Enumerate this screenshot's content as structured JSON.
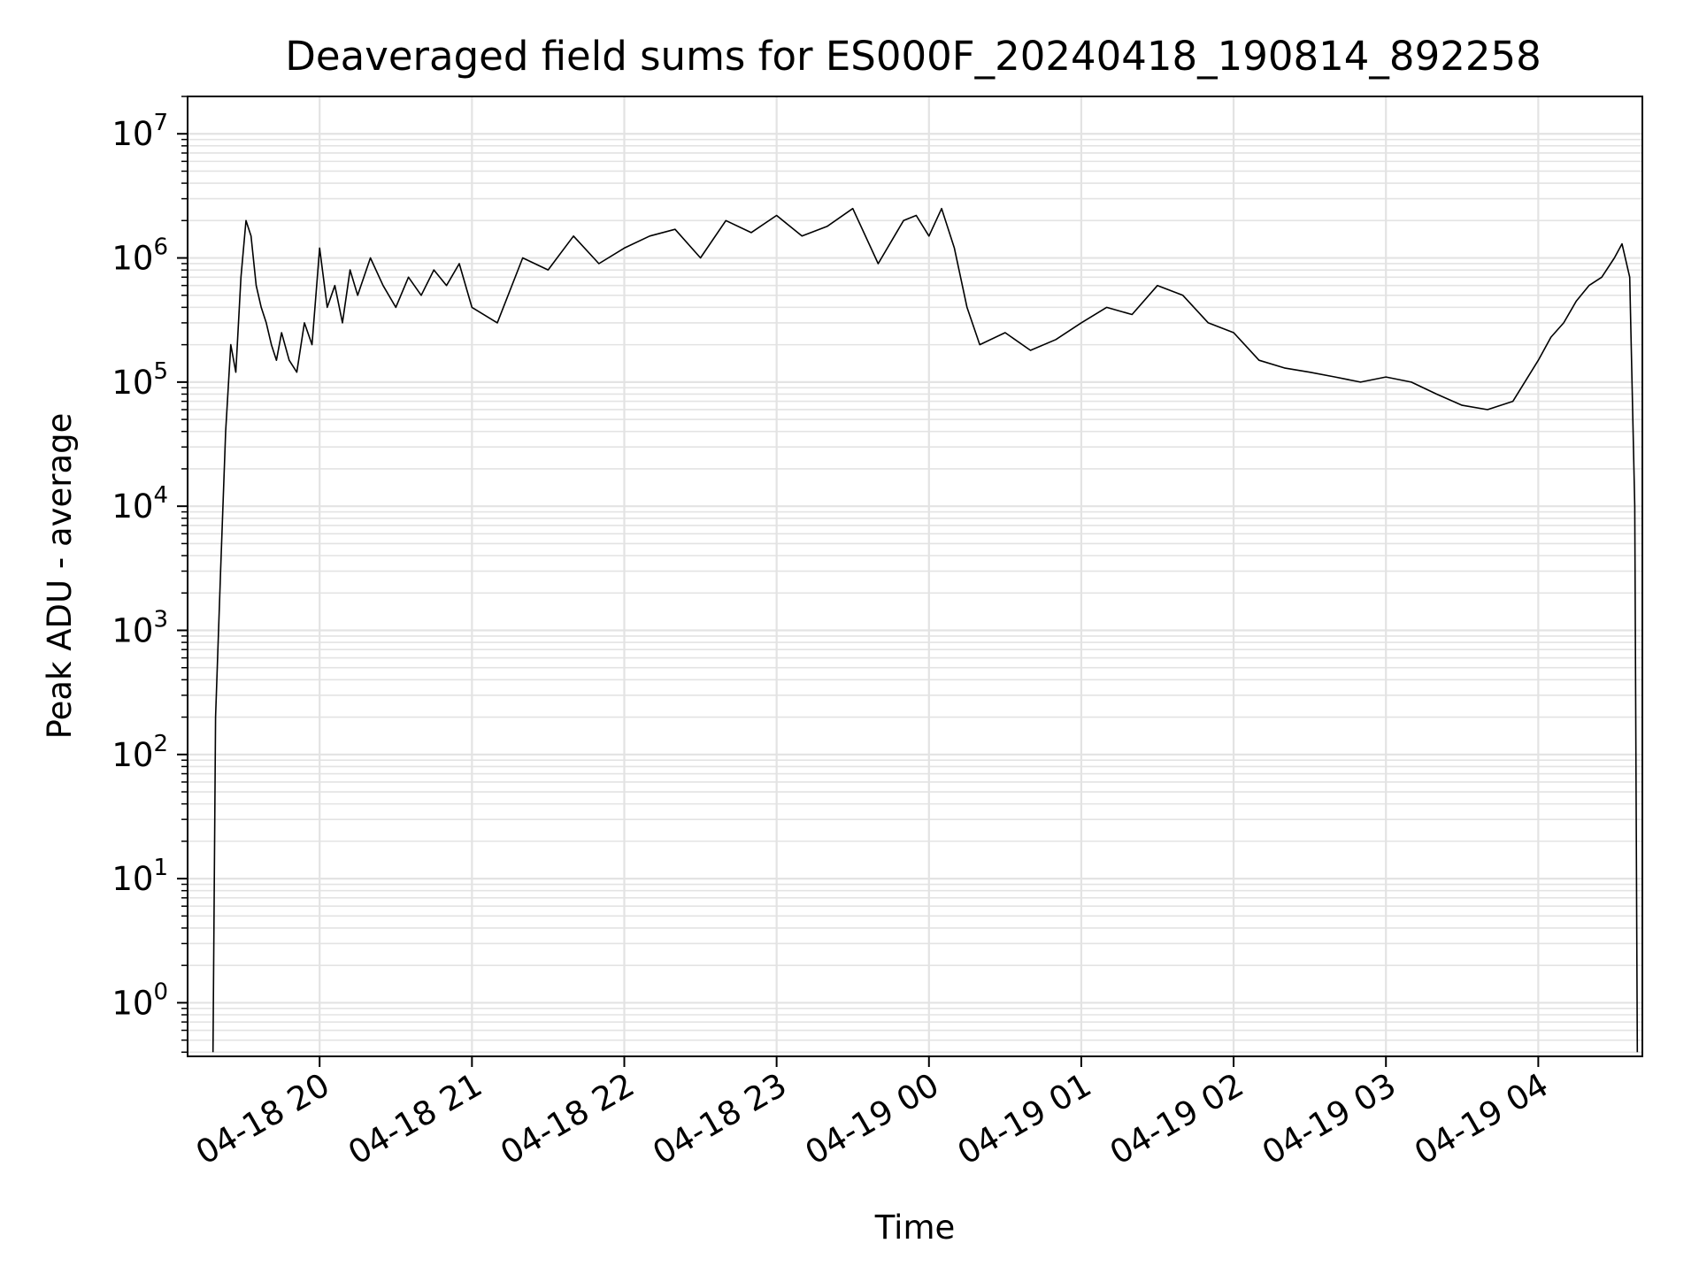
{
  "chart_data": {
    "type": "line",
    "title": "Deaveraged field sums for ES000F_20240418_190814_892258",
    "xlabel": "Time",
    "ylabel": "Peak ADU - average",
    "y_scale": "log",
    "ylim": [
      0.37,
      20000000
    ],
    "xlim": [
      "2024-04-18 19:08",
      "2024-04-19 04:41"
    ],
    "grid": true,
    "line_color": "#000000",
    "grid_color": "#e3e3e3",
    "x_ticks": [
      {
        "value": "2024-04-18 20:00",
        "label": "04-18 20"
      },
      {
        "value": "2024-04-18 21:00",
        "label": "04-18 21"
      },
      {
        "value": "2024-04-18 22:00",
        "label": "04-18 22"
      },
      {
        "value": "2024-04-18 23:00",
        "label": "04-18 23"
      },
      {
        "value": "2024-04-19 00:00",
        "label": "04-19 00"
      },
      {
        "value": "2024-04-19 01:00",
        "label": "04-19 01"
      },
      {
        "value": "2024-04-19 02:00",
        "label": "04-19 02"
      },
      {
        "value": "2024-04-19 03:00",
        "label": "04-19 03"
      },
      {
        "value": "2024-04-19 04:00",
        "label": "04-19 04"
      }
    ],
    "y_ticks": [
      {
        "value": 1,
        "base": "10",
        "exp": "0"
      },
      {
        "value": 10,
        "base": "10",
        "exp": "1"
      },
      {
        "value": 100,
        "base": "10",
        "exp": "2"
      },
      {
        "value": 1000,
        "base": "10",
        "exp": "3"
      },
      {
        "value": 10000,
        "base": "10",
        "exp": "4"
      },
      {
        "value": 100000,
        "base": "10",
        "exp": "5"
      },
      {
        "value": 1000000,
        "base": "10",
        "exp": "6"
      },
      {
        "value": 10000000,
        "base": "10",
        "exp": "7"
      }
    ],
    "series": [
      {
        "x": [
          "2024-04-18 19:18",
          "2024-04-18 19:19",
          "2024-04-18 19:21",
          "2024-04-18 19:23",
          "2024-04-18 19:25",
          "2024-04-18 19:27",
          "2024-04-18 19:29",
          "2024-04-18 19:31",
          "2024-04-18 19:33",
          "2024-04-18 19:35",
          "2024-04-18 19:37",
          "2024-04-18 19:39",
          "2024-04-18 19:41",
          "2024-04-18 19:43",
          "2024-04-18 19:45",
          "2024-04-18 19:48",
          "2024-04-18 19:51",
          "2024-04-18 19:54",
          "2024-04-18 19:57",
          "2024-04-18 20:00",
          "2024-04-18 20:03",
          "2024-04-18 20:06",
          "2024-04-18 20:09",
          "2024-04-18 20:12",
          "2024-04-18 20:15",
          "2024-04-18 20:20",
          "2024-04-18 20:25",
          "2024-04-18 20:30",
          "2024-04-18 20:35",
          "2024-04-18 20:40",
          "2024-04-18 20:45",
          "2024-04-18 20:50",
          "2024-04-18 20:55",
          "2024-04-18 21:00",
          "2024-04-18 21:10",
          "2024-04-18 21:20",
          "2024-04-18 21:30",
          "2024-04-18 21:40",
          "2024-04-18 21:50",
          "2024-04-18 22:00",
          "2024-04-18 22:10",
          "2024-04-18 22:20",
          "2024-04-18 22:30",
          "2024-04-18 22:40",
          "2024-04-18 22:50",
          "2024-04-18 23:00",
          "2024-04-18 23:10",
          "2024-04-18 23:20",
          "2024-04-18 23:30",
          "2024-04-18 23:40",
          "2024-04-18 23:50",
          "2024-04-18 23:55",
          "2024-04-19 00:00",
          "2024-04-19 00:05",
          "2024-04-19 00:10",
          "2024-04-19 00:15",
          "2024-04-19 00:20",
          "2024-04-19 00:30",
          "2024-04-19 00:40",
          "2024-04-19 00:50",
          "2024-04-19 01:00",
          "2024-04-19 01:10",
          "2024-04-19 01:20",
          "2024-04-19 01:30",
          "2024-04-19 01:40",
          "2024-04-19 01:50",
          "2024-04-19 02:00",
          "2024-04-19 02:10",
          "2024-04-19 02:20",
          "2024-04-19 02:30",
          "2024-04-19 02:40",
          "2024-04-19 02:50",
          "2024-04-19 03:00",
          "2024-04-19 03:10",
          "2024-04-19 03:20",
          "2024-04-19 03:30",
          "2024-04-19 03:40",
          "2024-04-19 03:50",
          "2024-04-19 04:00",
          "2024-04-19 04:05",
          "2024-04-19 04:10",
          "2024-04-19 04:15",
          "2024-04-19 04:20",
          "2024-04-19 04:25",
          "2024-04-19 04:30",
          "2024-04-19 04:33",
          "2024-04-19 04:36",
          "2024-04-19 04:38",
          "2024-04-19 04:39"
        ],
        "values": [
          0.4,
          200,
          3000,
          40000,
          200000,
          120000,
          700000,
          2000000,
          1500000,
          600000,
          400000,
          300000,
          200000,
          150000,
          250000,
          150000,
          120000,
          300000,
          200000,
          1200000,
          400000,
          600000,
          300000,
          800000,
          500000,
          1000000,
          600000,
          400000,
          700000,
          500000,
          800000,
          600000,
          900000,
          400000,
          300000,
          1000000,
          800000,
          1500000,
          900000,
          1200000,
          1500000,
          1700000,
          1000000,
          2000000,
          1600000,
          2200000,
          1500000,
          1800000,
          2500000,
          900000,
          2000000,
          2200000,
          1500000,
          2500000,
          1200000,
          400000,
          200000,
          250000,
          180000,
          220000,
          300000,
          400000,
          350000,
          600000,
          500000,
          300000,
          250000,
          150000,
          130000,
          120000,
          110000,
          100000,
          110000,
          100000,
          80000,
          65000,
          60000,
          70000,
          150000,
          230000,
          300000,
          450000,
          600000,
          700000,
          1000000,
          1300000,
          700000,
          10000,
          0.4
        ]
      }
    ]
  }
}
